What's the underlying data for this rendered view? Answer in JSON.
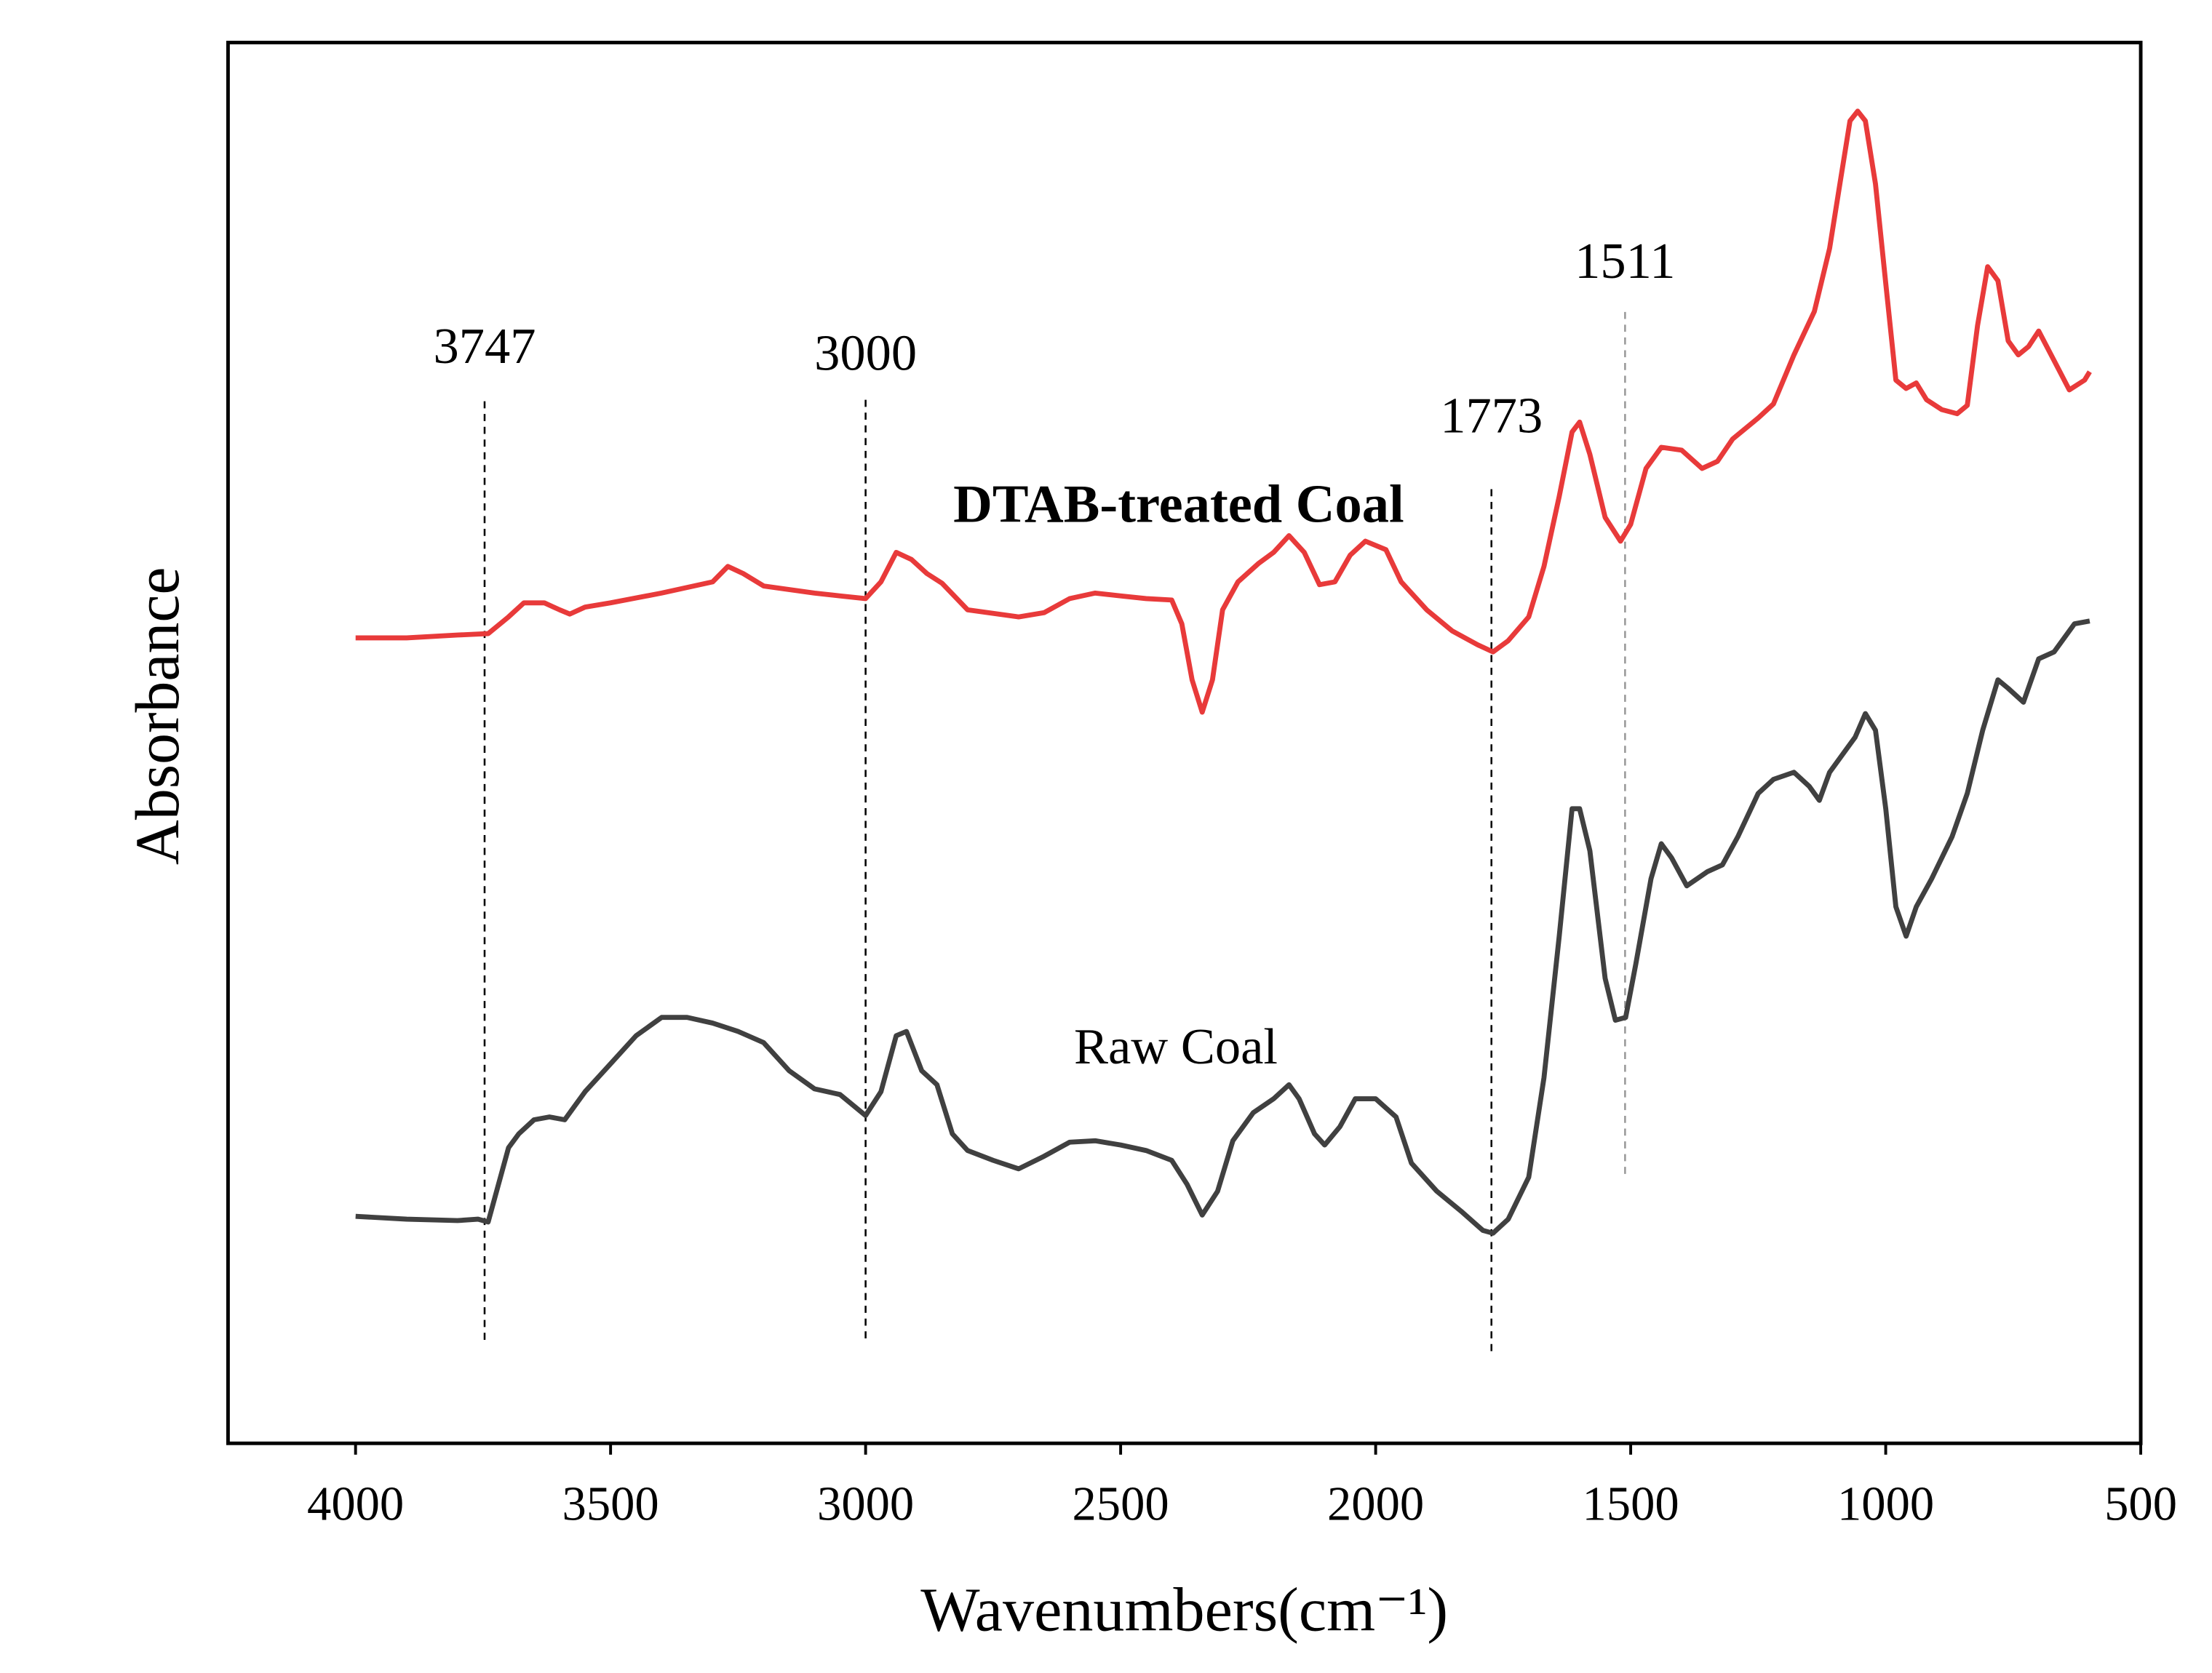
{
  "chart_data": {
    "type": "line",
    "xlabel": "Wavenumbers(cm⁻¹)",
    "ylabel": "Absorbance",
    "xlim": [
      4250,
      500
    ],
    "xticks": [
      4000,
      3500,
      3000,
      2500,
      2000,
      1500,
      1000,
      500
    ],
    "ylim": [
      0,
      100
    ],
    "grid": false,
    "annotations": [
      3747,
      3000,
      1773,
      1511
    ],
    "series": [
      {
        "name": "Raw Coal",
        "color": "#404040",
        "x": [
          4000,
          3900,
          3800,
          3760,
          3740,
          3700,
          3680,
          3650,
          3620,
          3590,
          3550,
          3500,
          3450,
          3400,
          3350,
          3300,
          3250,
          3200,
          3150,
          3100,
          3050,
          3000,
          2970,
          2940,
          2920,
          2890,
          2860,
          2830,
          2800,
          2750,
          2700,
          2650,
          2600,
          2550,
          2500,
          2450,
          2400,
          2370,
          2340,
          2310,
          2280,
          2240,
          2200,
          2170,
          2150,
          2120,
          2100,
          2070,
          2040,
          2000,
          1960,
          1930,
          1880,
          1830,
          1790,
          1770,
          1740,
          1700,
          1670,
          1640,
          1615,
          1600,
          1580,
          1550,
          1530,
          1510,
          1490,
          1460,
          1440,
          1420,
          1390,
          1350,
          1320,
          1290,
          1250,
          1220,
          1180,
          1150,
          1130,
          1110,
          1080,
          1060,
          1040,
          1020,
          1000,
          980,
          960,
          940,
          910,
          870,
          840,
          810,
          780,
          760,
          730,
          700,
          670,
          630,
          600
        ],
        "values": [
          16.2,
          16.0,
          15.9,
          16.0,
          15.8,
          21.1,
          22.1,
          23.1,
          23.3,
          23.1,
          25.1,
          27.1,
          29.1,
          30.4,
          30.4,
          30.0,
          29.4,
          28.6,
          26.6,
          25.3,
          24.9,
          23.4,
          25.1,
          29.1,
          29.4,
          26.6,
          25.6,
          22.1,
          20.9,
          20.2,
          19.6,
          20.5,
          21.5,
          21.6,
          21.3,
          20.9,
          20.2,
          18.5,
          16.3,
          18.0,
          21.6,
          23.6,
          24.6,
          25.6,
          24.6,
          22.1,
          21.3,
          22.6,
          24.6,
          24.6,
          23.3,
          20.0,
          18.0,
          16.5,
          15.2,
          15.0,
          16.0,
          19.0,
          26.1,
          36.2,
          45.3,
          45.3,
          42.3,
          33.2,
          30.2,
          30.4,
          34.2,
          40.3,
          42.8,
          41.8,
          39.8,
          40.8,
          41.3,
          43.3,
          46.4,
          47.4,
          47.9,
          46.9,
          45.9,
          47.9,
          49.4,
          50.4,
          52.1,
          50.9,
          45.3,
          38.3,
          36.2,
          38.3,
          40.3,
          43.3,
          46.4,
          50.9,
          54.5,
          53.9,
          52.9,
          56.0,
          56.5,
          58.5,
          58.7
        ]
      },
      {
        "name": "DTAB-treated Coal",
        "color": "#e83a3a",
        "x": [
          4000,
          3900,
          3800,
          3740,
          3700,
          3670,
          3630,
          3600,
          3580,
          3550,
          3500,
          3400,
          3300,
          3270,
          3240,
          3200,
          3100,
          3050,
          3000,
          2970,
          2940,
          2910,
          2880,
          2850,
          2800,
          2700,
          2650,
          2600,
          2550,
          2500,
          2450,
          2400,
          2380,
          2360,
          2340,
          2320,
          2300,
          2270,
          2230,
          2200,
          2170,
          2140,
          2110,
          2080,
          2050,
          2020,
          1980,
          1950,
          1900,
          1850,
          1800,
          1770,
          1740,
          1700,
          1670,
          1640,
          1615,
          1600,
          1580,
          1550,
          1520,
          1500,
          1470,
          1440,
          1400,
          1360,
          1330,
          1300,
          1250,
          1220,
          1180,
          1140,
          1110,
          1090,
          1070,
          1055,
          1040,
          1020,
          1000,
          980,
          960,
          940,
          920,
          890,
          860,
          840,
          820,
          800,
          780,
          760,
          740,
          720,
          700,
          670,
          640,
          610,
          600
        ],
        "values": [
          57.5,
          57.5,
          57.7,
          57.8,
          59.0,
          60.0,
          60.0,
          59.5,
          59.2,
          59.7,
          60.0,
          60.7,
          61.5,
          62.6,
          62.1,
          61.2,
          60.7,
          60.5,
          60.3,
          61.5,
          63.6,
          63.1,
          62.1,
          61.4,
          59.5,
          59.0,
          59.3,
          60.3,
          60.7,
          60.5,
          60.3,
          60.2,
          58.5,
          54.5,
          52.2,
          54.5,
          59.5,
          61.5,
          62.8,
          63.6,
          64.8,
          63.6,
          61.3,
          61.5,
          63.4,
          64.4,
          63.8,
          61.5,
          59.5,
          58.0,
          57.0,
          56.5,
          57.3,
          59.0,
          62.6,
          67.6,
          72.2,
          72.9,
          70.6,
          66.1,
          64.4,
          65.6,
          69.6,
          71.1,
          70.9,
          69.6,
          70.1,
          71.7,
          73.2,
          74.2,
          77.7,
          80.8,
          85.3,
          89.9,
          94.4,
          95.1,
          94.4,
          89.9,
          82.8,
          75.9,
          75.3,
          75.7,
          74.5,
          73.8,
          73.5,
          74.1,
          79.8,
          84.0,
          83.0,
          78.7,
          77.7,
          78.3,
          79.4,
          77.3,
          75.2,
          75.9,
          76.5
        ]
      }
    ]
  }
}
